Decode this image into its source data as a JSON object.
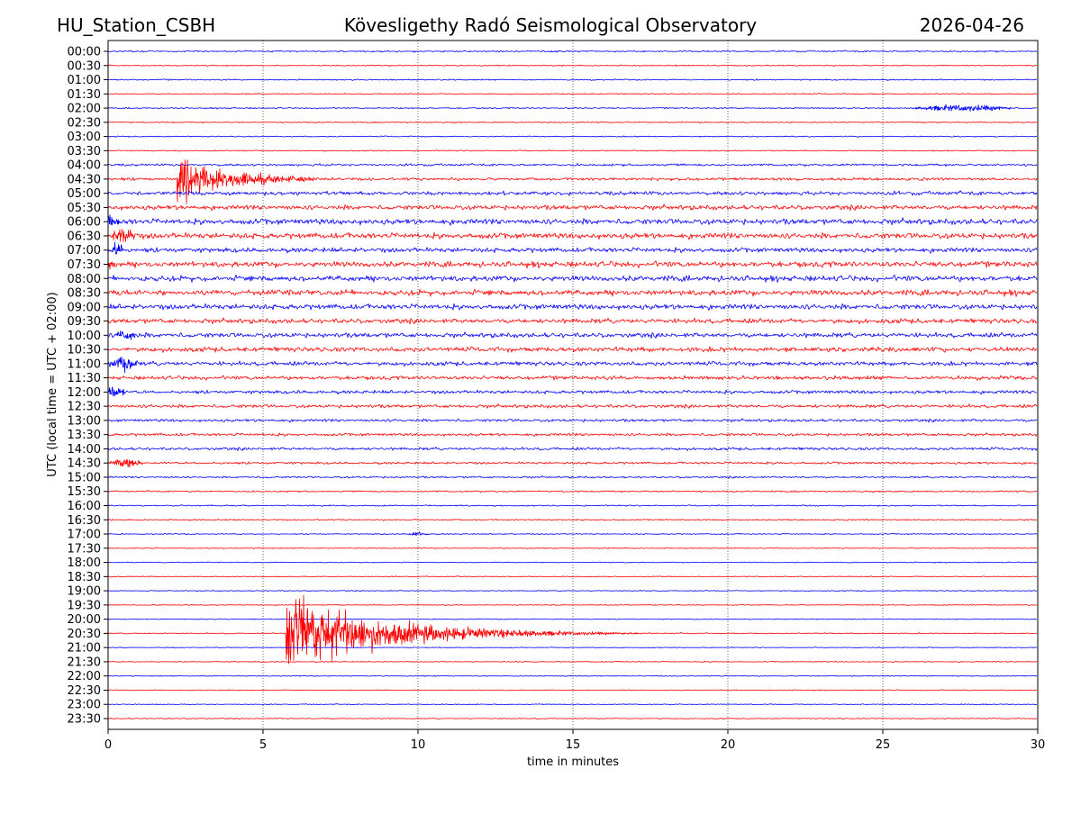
{
  "header": {
    "station": "HU_Station_CSBH",
    "observatory": "Kövesligethy Radó Seismological Observatory",
    "date": "2026-04-26"
  },
  "chart_data": {
    "type": "line",
    "title": "Kövesligethy Radó Seismological Observatory",
    "xlabel": "time in minutes",
    "ylabel": "UTC (local time = UTC + 02:00)",
    "xlim": [
      0,
      30
    ],
    "xticks": [
      "0",
      "5",
      "10",
      "15",
      "20",
      "25",
      "30"
    ],
    "grid": "vertical dotted at x ticks",
    "colors": {
      "even_rows": "#0000ff",
      "odd_rows": "#ff0000"
    },
    "rows": [
      "00:00",
      "00:30",
      "01:00",
      "01:30",
      "02:00",
      "02:30",
      "03:00",
      "03:30",
      "04:00",
      "04:30",
      "05:00",
      "05:30",
      "06:00",
      "06:30",
      "07:00",
      "07:30",
      "08:00",
      "08:30",
      "09:00",
      "09:30",
      "10:00",
      "10:30",
      "11:00",
      "11:30",
      "12:00",
      "12:30",
      "13:00",
      "13:30",
      "14:00",
      "14:30",
      "15:00",
      "15:30",
      "16:00",
      "16:30",
      "17:00",
      "17:30",
      "18:00",
      "18:30",
      "19:00",
      "19:30",
      "20:00",
      "20:30",
      "21:00",
      "21:30",
      "22:00",
      "22:30",
      "23:00",
      "23:30"
    ],
    "noise_level": [
      0.08,
      0.06,
      0.07,
      0.06,
      0.07,
      0.06,
      0.06,
      0.06,
      0.12,
      0.15,
      0.2,
      0.25,
      0.3,
      0.3,
      0.25,
      0.3,
      0.3,
      0.3,
      0.28,
      0.25,
      0.25,
      0.25,
      0.22,
      0.2,
      0.18,
      0.18,
      0.15,
      0.15,
      0.15,
      0.12,
      0.1,
      0.08,
      0.07,
      0.07,
      0.06,
      0.05,
      0.05,
      0.05,
      0.05,
      0.05,
      0.05,
      0.06,
      0.05,
      0.05,
      0.05,
      0.05,
      0.05,
      0.05
    ],
    "burst_rate_per_30min": [
      3,
      2,
      3,
      2,
      2,
      1,
      1,
      1,
      8,
      10,
      18,
      25,
      30,
      30,
      22,
      28,
      30,
      30,
      26,
      24,
      22,
      24,
      22,
      18,
      16,
      16,
      14,
      14,
      16,
      12,
      8,
      5,
      4,
      4,
      3,
      1,
      1,
      1,
      1,
      1,
      1,
      2,
      1,
      1,
      1,
      1,
      1,
      1
    ],
    "events": [
      {
        "row": "02:00",
        "start_min": 25.6,
        "peak": 0.35,
        "duration_min": 4.0,
        "kind": "tremor"
      },
      {
        "row": "04:30",
        "start_min": 2.2,
        "peak": 2.3,
        "duration_min": 8.0,
        "kind": "quake"
      },
      {
        "row": "17:00",
        "start_min": 9.6,
        "peak": 0.25,
        "duration_min": 0.8,
        "kind": "tremor"
      },
      {
        "row": "20:30",
        "start_min": 5.75,
        "peak": 4.2,
        "duration_min": 13.0,
        "kind": "quake"
      }
    ]
  }
}
